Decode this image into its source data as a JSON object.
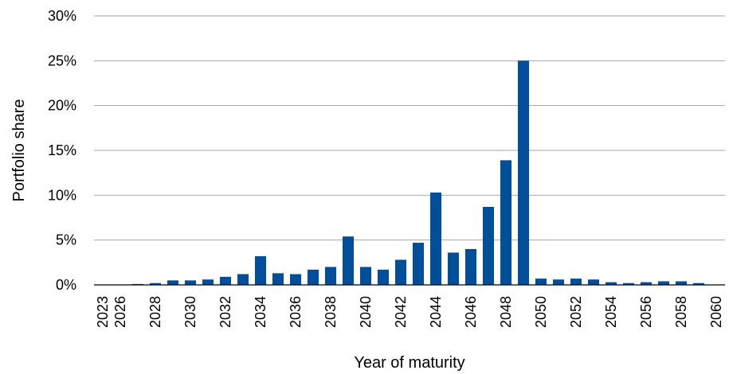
{
  "chart_data": {
    "type": "bar",
    "title": "",
    "xlabel": "Year of maturity",
    "ylabel": "Portfolio share",
    "ylim": [
      0,
      30
    ],
    "y_ticks": [
      "0%",
      "5%",
      "10%",
      "15%",
      "20%",
      "25%",
      "30%"
    ],
    "y_tick_values": [
      0,
      5,
      10,
      15,
      20,
      25,
      30
    ],
    "grid": true,
    "legend": "none",
    "bar_color": "#004f98",
    "categories": [
      "2023",
      "2026",
      "2027",
      "2028",
      "2029",
      "2030",
      "2031",
      "2032",
      "2033",
      "2034",
      "2035",
      "2036",
      "2037",
      "2038",
      "2039",
      "2040",
      "2041",
      "2042",
      "2043",
      "2044",
      "2045",
      "2046",
      "2047",
      "2048",
      "2049",
      "2050",
      "2051",
      "2052",
      "2053",
      "2054",
      "2055",
      "2056",
      "2057",
      "2058",
      "2059",
      "2060"
    ],
    "x_tick_labels": [
      "2023",
      "2026",
      "2028",
      "2030",
      "2032",
      "2034",
      "2036",
      "2038",
      "2040",
      "2042",
      "2044",
      "2046",
      "2048",
      "2050",
      "2052",
      "2054",
      "2056",
      "2058",
      "2060"
    ],
    "values": [
      0,
      0,
      0.1,
      0.2,
      0.5,
      0.5,
      0.6,
      0.9,
      1.2,
      3.2,
      1.3,
      1.2,
      1.7,
      2.0,
      5.4,
      2.0,
      1.7,
      2.8,
      4.7,
      10.3,
      3.6,
      4.0,
      8.7,
      13.9,
      25.0,
      0.7,
      0.6,
      0.7,
      0.6,
      0.3,
      0.2,
      0.3,
      0.4,
      0.4,
      0.2,
      0
    ]
  }
}
